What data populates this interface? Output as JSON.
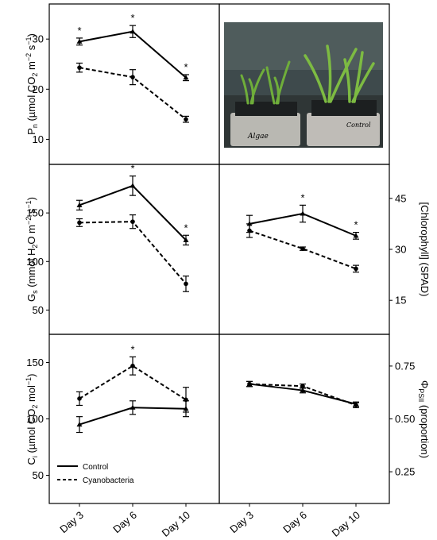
{
  "chart_data": [
    {
      "id": "pn",
      "type": "line",
      "categories": [
        "Day 3",
        "Day 6",
        "Day 10"
      ],
      "ylabel_main": "P",
      "ylabel_sub": "n",
      "ylabel_unit": " (µmol CO",
      "ylabel_sub2": "2",
      "ylabel_tail": " m",
      "ylabel_exp1": "−2",
      "ylabel_mid": " s",
      "ylabel_exp2": "−1",
      "ylabel_end": ")",
      "yticks": [
        10,
        20,
        30
      ],
      "ylim": [
        5,
        37
      ],
      "series": [
        {
          "style": "solid",
          "values": [
            29.5,
            31.5,
            22.3
          ],
          "errors": [
            0.7,
            1.2,
            0.6
          ]
        },
        {
          "style": "dashed",
          "values": [
            24.3,
            22.4,
            14.0
          ],
          "errors": [
            0.9,
            1.5,
            0.6
          ]
        }
      ],
      "significance": [
        "*",
        "*",
        "*"
      ]
    },
    {
      "id": "gs",
      "type": "line",
      "categories": [
        "Day 3",
        "Day 6",
        "Day 10"
      ],
      "ylabel_main": "G",
      "ylabel_sub": "s",
      "ylabel_unit": " (mmol H",
      "ylabel_sub2": "2",
      "ylabel_tail": "O m",
      "ylabel_exp1": "−2",
      "ylabel_mid": " s",
      "ylabel_exp2": "−1",
      "ylabel_end": ")",
      "yticks": [
        50,
        100,
        150
      ],
      "ylim": [
        25,
        200
      ],
      "series": [
        {
          "style": "solid",
          "values": [
            158,
            178,
            122
          ],
          "errors": [
            5,
            10,
            5
          ]
        },
        {
          "style": "dashed",
          "values": [
            140,
            141,
            77
          ],
          "errors": [
            4,
            7,
            8
          ]
        }
      ],
      "significance": [
        "",
        "*",
        "*"
      ]
    },
    {
      "id": "chl",
      "type": "line",
      "categories": [
        "Day 3",
        "Day 6",
        "Day 10"
      ],
      "ylabel": "[Chlorophyll] (SPAD)",
      "yticks": [
        15,
        30,
        45
      ],
      "ylim": [
        5,
        55
      ],
      "series": [
        {
          "style": "solid",
          "values": [
            37.5,
            40.5,
            34.0
          ],
          "errors": [
            2.5,
            2.5,
            1.0
          ]
        },
        {
          "style": "dashed",
          "values": [
            35.5,
            30.2,
            24.3
          ],
          "errors": [
            2.0,
            0.5,
            1.0
          ]
        }
      ],
      "significance": [
        "",
        "*",
        "*"
      ]
    },
    {
      "id": "ci",
      "type": "line",
      "categories": [
        "Day 3",
        "Day 6",
        "Day 10"
      ],
      "ylabel_main": "C",
      "ylabel_sub": "i",
      "ylabel_unit": " (µmol CO",
      "ylabel_sub2": "2",
      "ylabel_tail": " mol",
      "ylabel_exp1": "−1",
      "ylabel_mid": "",
      "ylabel_exp2": "",
      "ylabel_end": ")",
      "yticks": [
        50,
        100,
        150
      ],
      "ylim": [
        25,
        175
      ],
      "series": [
        {
          "style": "solid",
          "values": [
            95,
            110,
            109
          ],
          "errors": [
            7,
            6,
            7
          ]
        },
        {
          "style": "dashed",
          "values": [
            118,
            147,
            117
          ],
          "errors": [
            6,
            8,
            11
          ]
        }
      ],
      "significance": [
        "",
        "*",
        ""
      ],
      "legend": [
        "Control",
        "Cyanobacteria"
      ]
    },
    {
      "id": "phi",
      "type": "line",
      "categories": [
        "Day 3",
        "Day 6",
        "Day 10"
      ],
      "ylabel_main": "Φ",
      "ylabel_sub": "PSII",
      "ylabel_tail": " (proportion)",
      "yticks": [
        "0.25",
        "0.50",
        "0.75"
      ],
      "ylim": [
        0.1,
        0.9
      ],
      "series": [
        {
          "style": "solid",
          "values": [
            0.665,
            0.635,
            0.57
          ],
          "errors": [
            0.012,
            0.012,
            0.01
          ]
        },
        {
          "style": "dashed",
          "values": [
            0.665,
            0.655,
            0.565
          ],
          "errors": [
            0.012,
            0.01,
            0.012
          ]
        }
      ],
      "significance": [
        "",
        "",
        ""
      ]
    }
  ],
  "photo": {
    "labels": [
      "Algae",
      "Control"
    ]
  }
}
